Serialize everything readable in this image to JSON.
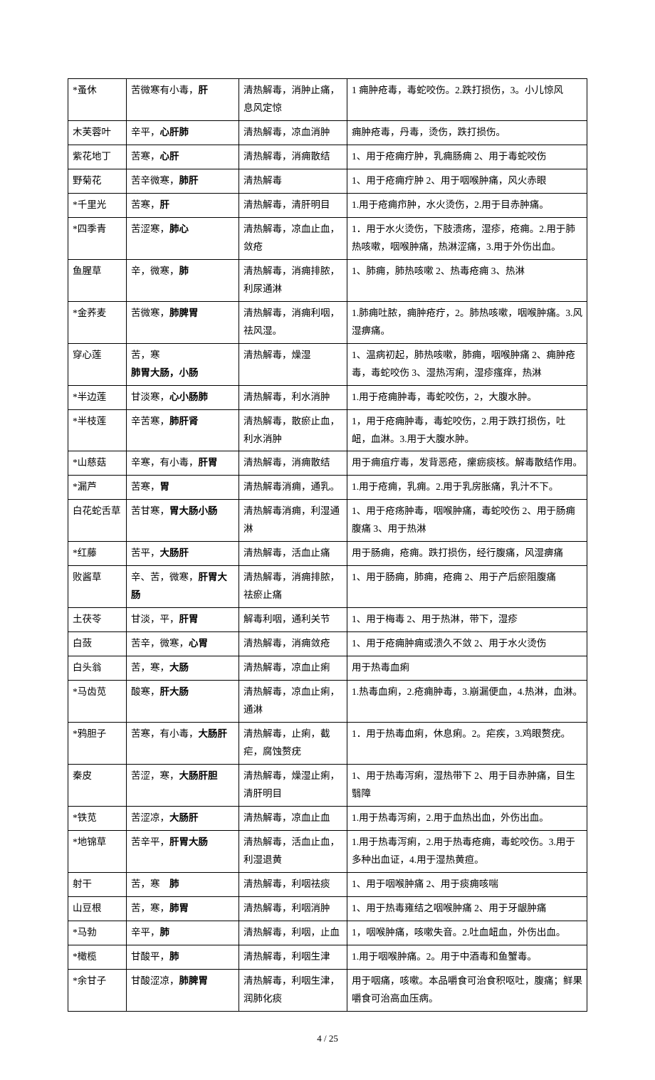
{
  "table": {
    "columns": {
      "name_width": 82,
      "prop_width": 158,
      "func_width": 152
    },
    "text_color": "#000000",
    "border_color": "#000000",
    "font_size": 13.5,
    "line_height": 1.85,
    "rows": [
      {
        "name": "*蚤休",
        "prop_pre": "苦微寒有小毒，",
        "prop_bold": "肝",
        "func": "清热解毒，消肿止痛，息风定惊",
        "use": "1 痈肿疮毒，毒蛇咬伤。2.跌打损伤，3。小儿惊风"
      },
      {
        "name": "木芙蓉叶",
        "prop_pre": "辛平，",
        "prop_bold": "心肝肺",
        "func": "清热解毒，凉血消肿",
        "use": "痈肿疮毒，丹毒，烫伤，跌打损伤。"
      },
      {
        "name": "紫花地丁",
        "prop_pre": "苦寒，",
        "prop_bold": "心肝",
        "func": "清热解毒，消痈散结",
        "use": "1、用于疮痈疔肿，乳痈肠痈 2、用于毒蛇咬伤"
      },
      {
        "name": "野菊花",
        "prop_pre": "苦辛微寒，",
        "prop_bold": "肺肝",
        "func": "清热解毒",
        "use": "1、用于疮痈疔肿 2、用于咽喉肿痛，风火赤眼"
      },
      {
        "name": "*千里光",
        "prop_pre": "苦寒，",
        "prop_bold": "肝",
        "func": "清热解毒，清肝明目",
        "use": "1.用于疮痈疖肿，水火烫伤，2.用于目赤肿痛。"
      },
      {
        "name": "*四季青",
        "prop_pre": "苦涩寒，",
        "prop_bold": "肺心",
        "func": "清热解毒，凉血止血，敛疮",
        "use": "1．用于水火烫伤，下肢溃疡，湿疹，疮痈。2.用于肺热咳嗽，咽喉肿痛，热淋涩痛，3.用于外伤出血。"
      },
      {
        "name": "鱼腥草",
        "prop_pre": "辛，微寒，",
        "prop_bold": "肺",
        "func": "清热解毒，消痈排脓，利尿通淋",
        "use": "1、肺痈，肺热咳嗽 2、热毒疮痈 3、热淋"
      },
      {
        "name": "*金荞麦",
        "prop_pre": "苦微寒，",
        "prop_bold": "肺脾胃",
        "func": "清热解毒，消痈利咽，祛风湿。",
        "use": "1.肺痈吐脓，痈肿疮疔，2。肺热咳嗽，咽喉肿痛。3.风湿痹痛。"
      },
      {
        "name": "穿心莲",
        "prop_pre": "苦，寒",
        "prop_bold": "肺胃大肠，小肠",
        "prop_bold_newline": true,
        "func": "清热解毒，燥湿",
        "use": "1、温病初起，肺热咳嗽，肺痈，咽喉肿痛 2、痈肿疮毒，毒蛇咬伤 3、湿热泻痢，湿疹瘙痒，热淋"
      },
      {
        "name": "*半边莲",
        "prop_pre": "甘淡寒，",
        "prop_bold": "心小肠肺",
        "func": "清热解毒，利水消肿",
        "use": "1.用于疮痈肿毒，毒蛇咬伤，2，大腹水肿。"
      },
      {
        "name": "*半枝莲",
        "prop_pre": "辛苦寒，",
        "prop_bold": "肺肝肾",
        "func": "清热解毒，散瘀止血，利水消肿",
        "use": "1，用于疮痈肿毒，毒蛇咬伤，2.用于跌打损伤，吐衄，血淋。3.用于大腹水肿。"
      },
      {
        "name": "*山慈菇",
        "prop_pre": "辛寒，有小毒，",
        "prop_bold": "肝胃",
        "func": "清热解毒，消痈散结",
        "use": "用于痈疽疔毒，发背恶疮，瘰疬痰核。解毒散结作用。"
      },
      {
        "name": "*漏芦",
        "prop_pre": "苦寒，",
        "prop_bold": "胃",
        "func": "清热解毒消痈，通乳。",
        "use": "1.用于疮痈，乳痈。2.用于乳房胀痛，乳汁不下。"
      },
      {
        "name": "白花蛇舌草",
        "prop_pre": "苦甘寒，",
        "prop_bold": "胃大肠小肠",
        "func": "清热解毒消痈，利湿通淋",
        "use": "1、用于疮疡肿毒，咽喉肿痛，毒蛇咬伤 2、用于肠痈腹痛 3、用于热淋"
      },
      {
        "name": "*红藤",
        "prop_pre": "苦平，",
        "prop_bold": "大肠肝",
        "func": "清热解毒，活血止痛",
        "use": "用于肠痈，疮痈。跌打损伤，经行腹痛，风湿痹痛"
      },
      {
        "name": "败酱草",
        "prop_pre": "辛、苦，微寒，",
        "prop_bold": "肝胃大肠",
        "func": "清热解毒，消痈排脓，祛瘀止痛",
        "use": "1、用于肠痈，肺痈，疮痈 2、用于产后瘀阻腹痛"
      },
      {
        "name": "土茯苓",
        "prop_pre": "甘淡，平，",
        "prop_bold": "肝胃",
        "func": "解毒利咽，通利关节",
        "use": "1、用于梅毒 2、用于热淋，带下，湿疹"
      },
      {
        "name": "白蔹",
        "prop_pre": "苦辛，微寒，",
        "prop_bold": "心胃",
        "func": "清热解毒，消痈敛疮",
        "use": "1、用于疮痈肿痈或溃久不敛 2、用于水火烫伤"
      },
      {
        "name": "白头翁",
        "prop_pre": "苦，寒，",
        "prop_bold": "大肠",
        "func": "清热解毒，凉血止痢",
        "use": "用于热毒血痢"
      },
      {
        "name": "*马齿苋",
        "prop_pre": "酸寒，",
        "prop_bold": "肝大肠",
        "func": "清热解毒，凉血止痢，通淋",
        "use": "1.热毒血痢，2.疮痈肿毒，3.崩漏便血，4.热淋，血淋。"
      },
      {
        "name": "*鸦胆子",
        "prop_pre": "苦寒，有小毒，",
        "prop_bold": "大肠肝",
        "func": "清热解毒，止痢，截疟，腐蚀赘疣",
        "use": "1．用于热毒血痢，休息痢。2。疟疾，3.鸡眼赘疣。"
      },
      {
        "name": "秦皮",
        "prop_pre": "苦涩，寒，",
        "prop_bold": "大肠肝胆",
        "func": "清热解毒，燥湿止痢，清肝明目",
        "use": "1、用于热毒泻痢，湿热带下 2、用于目赤肿痛，目生翳障"
      },
      {
        "name": "*铁苋",
        "prop_pre": "苦涩凉，",
        "prop_bold": "大肠肝",
        "func": "清热解毒，凉血止血",
        "use": "1.用于热毒泻痢，2.用于血热出血，外伤出血。"
      },
      {
        "name": "*地锦草",
        "prop_pre": "苦辛平，",
        "prop_bold": "肝胃大肠",
        "func": "清热解毒，活血止血，利湿退黄",
        "use": "1.用于热毒泻痢，2.用于热毒疮痈，毒蛇咬伤。3.用于多种出血证，4.用于湿热黄疸。"
      },
      {
        "name": "射干",
        "prop_pre": "苦，寒　",
        "prop_bold": "肺",
        "func": "清热解毒，利咽祛痰",
        "use": "1、用于咽喉肿痛 2、用于痰痈咳喘"
      },
      {
        "name": "山豆根",
        "prop_pre": "苦，寒，",
        "prop_bold": "肺胃",
        "func": "清热解毒，利咽消肿",
        "use": "1、用于热毒雍结之咽喉肿痛 2、用于牙龈肿痛"
      },
      {
        "name": "*马勃",
        "prop_pre": "辛平，",
        "prop_bold": "肺",
        "func": "清热解毒，利咽，止血",
        "use": "1，咽喉肿痛，咳嗽失音。2.吐血衄血，外伤出血。"
      },
      {
        "name": "*橄榄",
        "prop_pre": "甘酸平，",
        "prop_bold": "肺",
        "func": "清热解毒，利咽生津",
        "use": "1.用于咽喉肿痛。2。用于中酒毒和鱼蟹毒。"
      },
      {
        "name": "*余甘子",
        "prop_pre": "甘酸涩凉，",
        "prop_bold": "肺脾胃",
        "func": "清热解毒，利咽生津，润肺化痰",
        "use": "用于咽痛，咳嗽。本品嚼食可治食积呕吐，腹痛；鲜果嚼食可治高血压病。"
      }
    ]
  },
  "pager": {
    "current": "4",
    "separator": "/",
    "total": "25"
  }
}
